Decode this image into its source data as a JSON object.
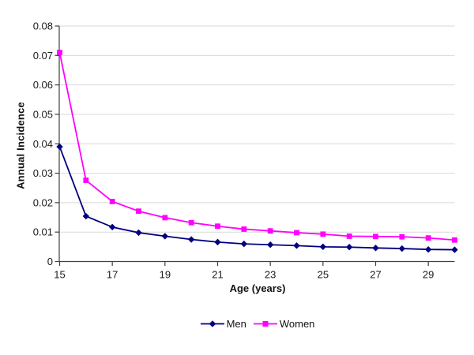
{
  "chart_data": {
    "type": "line",
    "title": "",
    "xlabel": "Age (years)",
    "ylabel": "Annual Incidence",
    "x": [
      15,
      16,
      17,
      18,
      19,
      20,
      21,
      22,
      23,
      24,
      25,
      26,
      27,
      28,
      29,
      30
    ],
    "series": [
      {
        "name": "Men",
        "marker": "diamond",
        "color": "#000080",
        "values": [
          0.039,
          0.0154,
          0.0117,
          0.0098,
          0.0086,
          0.0075,
          0.0066,
          0.006,
          0.0057,
          0.0054,
          0.005,
          0.0049,
          0.0046,
          0.0044,
          0.0041,
          0.004
        ]
      },
      {
        "name": "Women",
        "marker": "square",
        "color": "#ff00ff",
        "values": [
          0.071,
          0.0276,
          0.0204,
          0.0171,
          0.0149,
          0.0132,
          0.012,
          0.011,
          0.0104,
          0.0098,
          0.0093,
          0.0086,
          0.0085,
          0.0084,
          0.008,
          0.0073
        ]
      }
    ],
    "xlim": [
      15,
      30
    ],
    "ylim": [
      0,
      0.08
    ],
    "xticks": [
      15,
      17,
      19,
      21,
      23,
      25,
      27,
      29
    ],
    "xtick_labels": [
      "15",
      "17",
      "19",
      "21",
      "23",
      "25",
      "27",
      "29"
    ],
    "yticks": [
      0,
      0.01,
      0.02,
      0.03,
      0.04,
      0.05,
      0.06,
      0.07,
      0.08
    ],
    "ytick_labels": [
      "0",
      "0.01",
      "0.02",
      "0.03",
      "0.04",
      "0.05",
      "0.06",
      "0.07",
      "0.08"
    ],
    "grid": "horizontal",
    "legend_position": "bottom",
    "colors": {
      "background": "#ffffff",
      "gridline": "#d9d9d9",
      "axis": "#404040",
      "text": "#1a1a1a"
    }
  }
}
